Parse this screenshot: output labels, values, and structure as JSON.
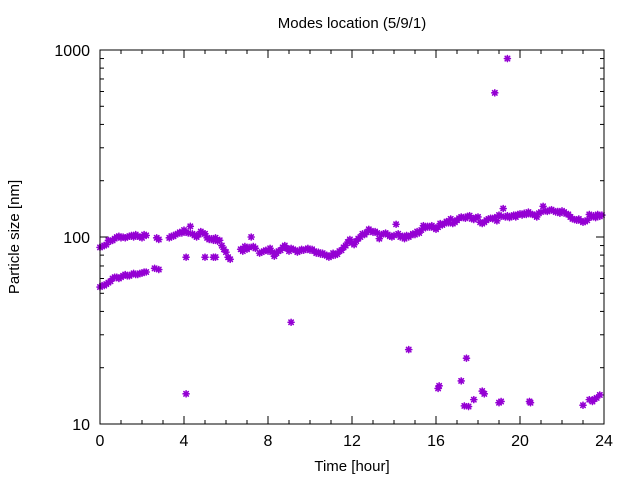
{
  "chart_data": {
    "type": "scatter",
    "title": "Modes location (5/9/1)",
    "xlabel": "Time [hour]",
    "ylabel": "Particle size [nm]",
    "xlim": [
      0,
      24
    ],
    "ylim": [
      10,
      1000
    ],
    "yscale": "log",
    "grid": false,
    "marker_color": "#9400d3",
    "x_ticks": [
      0,
      4,
      8,
      12,
      16,
      20,
      24
    ],
    "x_tick_labels": [
      "0",
      "4",
      "8",
      "12",
      "16",
      "20",
      "24"
    ],
    "y_ticks": [
      10,
      100,
      1000
    ],
    "y_tick_labels": [
      "10",
      "100",
      "1000"
    ],
    "series": [
      {
        "values": [
          [
            0.0,
            88
          ],
          [
            0.1,
            89
          ],
          [
            0.2,
            90
          ],
          [
            0.3,
            91
          ],
          [
            0.4,
            96
          ],
          [
            0.5,
            95
          ],
          [
            0.6,
            96
          ],
          [
            0.7,
            98
          ],
          [
            0.8,
            100
          ],
          [
            0.9,
            101
          ],
          [
            1.0,
            99
          ],
          [
            1.1,
            100
          ],
          [
            1.2,
            99
          ],
          [
            1.3,
            100
          ],
          [
            1.4,
            101
          ],
          [
            1.5,
            102
          ],
          [
            1.6,
            100
          ],
          [
            1.7,
            103
          ],
          [
            1.8,
            101
          ],
          [
            1.9,
            100
          ],
          [
            2.0,
            99
          ],
          [
            2.1,
            103
          ],
          [
            2.2,
            102
          ],
          [
            2.7,
            99
          ],
          [
            2.8,
            97
          ],
          [
            3.3,
            99
          ],
          [
            3.4,
            101
          ],
          [
            3.5,
            101
          ],
          [
            3.6,
            103
          ],
          [
            3.7,
            104
          ],
          [
            3.8,
            106
          ],
          [
            3.9,
            105
          ],
          [
            4.0,
            109
          ],
          [
            4.1,
            106
          ],
          [
            4.2,
            105
          ],
          [
            4.3,
            114
          ],
          [
            4.4,
            104
          ],
          [
            4.5,
            102
          ],
          [
            4.6,
            100
          ],
          [
            4.7,
            103
          ],
          [
            4.8,
            107
          ],
          [
            4.9,
            105
          ],
          [
            5.0,
            104
          ],
          [
            5.1,
            99
          ],
          [
            5.2,
            97
          ],
          [
            5.3,
            98
          ],
          [
            5.4,
            96
          ],
          [
            5.5,
            99
          ],
          [
            5.6,
            95
          ],
          [
            5.7,
            96
          ],
          [
            5.8,
            90
          ],
          [
            5.9,
            86
          ],
          [
            6.0,
            83
          ],
          [
            6.1,
            78
          ],
          [
            6.2,
            76
          ],
          [
            6.7,
            86
          ],
          [
            6.8,
            84
          ],
          [
            6.9,
            89
          ],
          [
            7.0,
            86
          ],
          [
            7.1,
            88
          ],
          [
            7.2,
            100
          ],
          [
            7.3,
            89
          ],
          [
            7.4,
            87
          ],
          [
            7.6,
            82
          ],
          [
            7.7,
            83
          ],
          [
            7.8,
            84
          ],
          [
            7.9,
            85
          ],
          [
            8.0,
            84
          ],
          [
            8.1,
            87
          ],
          [
            8.2,
            83
          ],
          [
            8.3,
            79
          ],
          [
            8.4,
            82
          ],
          [
            8.5,
            84
          ],
          [
            8.6,
            85
          ],
          [
            8.7,
            88
          ],
          [
            8.8,
            90
          ],
          [
            8.9,
            87
          ],
          [
            9.0,
            84
          ],
          [
            9.1,
            87
          ],
          [
            9.2,
            86
          ],
          [
            9.3,
            85
          ],
          [
            9.4,
            83
          ],
          [
            9.5,
            84
          ],
          [
            9.6,
            86
          ],
          [
            9.7,
            85
          ],
          [
            9.8,
            86
          ],
          [
            9.9,
            87
          ],
          [
            10.0,
            85
          ],
          [
            10.1,
            86
          ],
          [
            10.2,
            84
          ],
          [
            10.3,
            82
          ],
          [
            10.4,
            83
          ],
          [
            10.5,
            81
          ],
          [
            10.6,
            82
          ],
          [
            10.7,
            80
          ],
          [
            10.8,
            80
          ],
          [
            10.9,
            78
          ],
          [
            11.0,
            79
          ],
          [
            11.1,
            82
          ],
          [
            11.2,
            80
          ],
          [
            11.3,
            81
          ],
          [
            11.4,
            84
          ],
          [
            11.5,
            85
          ],
          [
            11.6,
            88
          ],
          [
            11.7,
            90
          ],
          [
            11.8,
            94
          ],
          [
            11.9,
            97
          ],
          [
            12.0,
            93
          ],
          [
            12.1,
            91
          ],
          [
            12.2,
            95
          ],
          [
            12.3,
            98
          ],
          [
            12.4,
            100
          ],
          [
            12.5,
            104
          ],
          [
            12.6,
            103
          ],
          [
            12.7,
            106
          ],
          [
            12.8,
            110
          ],
          [
            12.9,
            108
          ],
          [
            13.0,
            106
          ],
          [
            13.1,
            107
          ],
          [
            13.2,
            105
          ],
          [
            13.3,
            98
          ],
          [
            13.4,
            103
          ],
          [
            13.5,
            104
          ],
          [
            13.6,
            105
          ],
          [
            13.7,
            103
          ],
          [
            13.8,
            101
          ],
          [
            13.9,
            100
          ],
          [
            14.0,
            102
          ],
          [
            14.1,
            117
          ],
          [
            14.2,
            104
          ],
          [
            14.3,
            100
          ],
          [
            14.4,
            101
          ],
          [
            14.5,
            98
          ],
          [
            14.6,
            102
          ],
          [
            14.7,
            100
          ],
          [
            14.8,
            102
          ],
          [
            14.9,
            104
          ],
          [
            15.0,
            103
          ],
          [
            15.1,
            107
          ],
          [
            15.2,
            105
          ],
          [
            15.3,
            109
          ],
          [
            15.4,
            115
          ],
          [
            15.5,
            112
          ],
          [
            15.6,
            114
          ],
          [
            15.7,
            113
          ],
          [
            15.8,
            115
          ],
          [
            15.9,
            112
          ],
          [
            16.0,
            110
          ],
          [
            16.1,
            113
          ],
          [
            16.2,
            118
          ],
          [
            16.3,
            116
          ],
          [
            16.4,
            118
          ],
          [
            16.5,
            121
          ],
          [
            16.6,
            119
          ],
          [
            16.7,
            125
          ],
          [
            16.8,
            118
          ],
          [
            16.9,
            120
          ],
          [
            17.0,
            123
          ],
          [
            17.1,
            126
          ],
          [
            17.2,
            128
          ],
          [
            17.3,
            127
          ],
          [
            17.4,
            126
          ],
          [
            17.5,
            129
          ],
          [
            17.6,
            130
          ],
          [
            17.7,
            125
          ],
          [
            17.8,
            124
          ],
          [
            17.9,
            127
          ],
          [
            18.0,
            128
          ],
          [
            18.1,
            120
          ],
          [
            18.2,
            118
          ],
          [
            18.3,
            120
          ],
          [
            18.4,
            123
          ],
          [
            18.5,
            125
          ],
          [
            18.6,
            126
          ],
          [
            18.7,
            125
          ],
          [
            18.8,
            127
          ],
          [
            18.9,
            122
          ],
          [
            19.0,
            131
          ],
          [
            19.1,
            129
          ],
          [
            19.2,
            142
          ],
          [
            19.3,
            128
          ],
          [
            19.4,
            130
          ],
          [
            19.5,
            127
          ],
          [
            19.6,
            129
          ],
          [
            19.7,
            131
          ],
          [
            19.8,
            128
          ],
          [
            19.9,
            132
          ],
          [
            20.0,
            133
          ],
          [
            20.1,
            131
          ],
          [
            20.2,
            134
          ],
          [
            20.3,
            132
          ],
          [
            20.4,
            136
          ],
          [
            20.5,
            133
          ],
          [
            20.6,
            132
          ],
          [
            20.7,
            131
          ],
          [
            20.8,
            128
          ],
          [
            20.9,
            134
          ],
          [
            21.0,
            136
          ],
          [
            21.1,
            146
          ],
          [
            21.2,
            138
          ],
          [
            21.3,
            137
          ],
          [
            21.4,
            139
          ],
          [
            21.5,
            140
          ],
          [
            21.6,
            138
          ],
          [
            21.7,
            136
          ],
          [
            21.8,
            137
          ],
          [
            21.9,
            134
          ],
          [
            22.0,
            138
          ],
          [
            22.1,
            136
          ],
          [
            22.2,
            133
          ],
          [
            22.3,
            132
          ],
          [
            22.4,
            128
          ],
          [
            22.5,
            125
          ],
          [
            22.6,
            124
          ],
          [
            22.7,
            123
          ],
          [
            22.8,
            125
          ],
          [
            22.9,
            122
          ],
          [
            23.0,
            120
          ],
          [
            23.1,
            121
          ],
          [
            23.2,
            123
          ],
          [
            23.3,
            132
          ],
          [
            23.4,
            128
          ],
          [
            23.5,
            130
          ],
          [
            23.6,
            127
          ],
          [
            23.7,
            132
          ],
          [
            23.8,
            129
          ],
          [
            23.9,
            131
          ]
        ]
      },
      {
        "values": [
          [
            0.0,
            54
          ],
          [
            0.1,
            55
          ],
          [
            0.2,
            55
          ],
          [
            0.3,
            56
          ],
          [
            0.4,
            57
          ],
          [
            0.5,
            58
          ],
          [
            0.6,
            60
          ],
          [
            0.7,
            61
          ],
          [
            0.8,
            61
          ],
          [
            0.9,
            60
          ],
          [
            1.0,
            61
          ],
          [
            1.1,
            62
          ],
          [
            1.2,
            63
          ],
          [
            1.3,
            62
          ],
          [
            1.4,
            62
          ],
          [
            1.5,
            63
          ],
          [
            1.6,
            64
          ],
          [
            1.7,
            63
          ],
          [
            1.8,
            63
          ],
          [
            1.9,
            64
          ],
          [
            2.0,
            64
          ],
          [
            2.1,
            65
          ],
          [
            2.2,
            65
          ],
          [
            2.6,
            68
          ],
          [
            2.8,
            67
          ],
          [
            4.1,
            14.5
          ],
          [
            4.1,
            78
          ],
          [
            5.0,
            78
          ],
          [
            5.4,
            78
          ],
          [
            5.5,
            78
          ],
          [
            9.1,
            35
          ],
          [
            14.7,
            25
          ],
          [
            16.1,
            15.5
          ],
          [
            16.15,
            16
          ],
          [
            17.2,
            17
          ],
          [
            17.35,
            12.5
          ],
          [
            17.45,
            22.5
          ],
          [
            17.55,
            12.4
          ],
          [
            17.8,
            13.5
          ],
          [
            18.2,
            15
          ],
          [
            18.3,
            14.5
          ],
          [
            18.8,
            590
          ],
          [
            19.0,
            13
          ],
          [
            19.1,
            13.2
          ],
          [
            19.4,
            900
          ],
          [
            20.45,
            13.2
          ],
          [
            20.5,
            13
          ],
          [
            23.0,
            12.6
          ],
          [
            23.3,
            13.5
          ],
          [
            23.45,
            13.2
          ],
          [
            23.55,
            13.6
          ],
          [
            23.65,
            13.8
          ],
          [
            23.8,
            14.3
          ]
        ]
      }
    ]
  }
}
